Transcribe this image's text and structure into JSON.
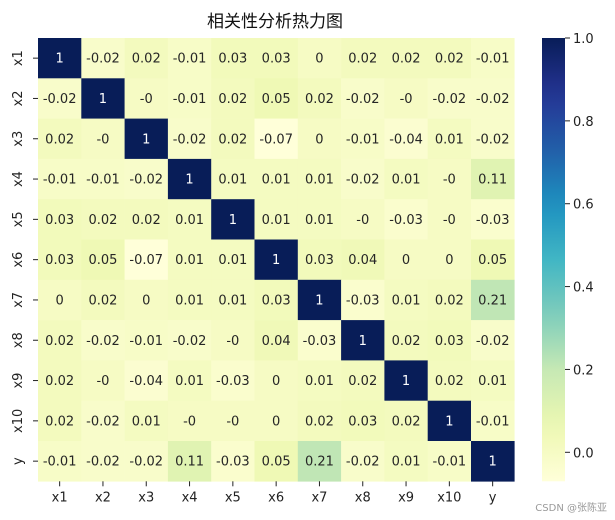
{
  "chart_data": {
    "type": "heatmap",
    "title": "相关性分析热力图",
    "x_labels": [
      "x1",
      "x2",
      "x3",
      "x4",
      "x5",
      "x6",
      "x7",
      "x8",
      "x9",
      "x10",
      "y"
    ],
    "y_labels": [
      "x1",
      "x2",
      "x3",
      "x4",
      "x5",
      "x6",
      "x7",
      "x8",
      "x9",
      "x10",
      "y"
    ],
    "matrix": [
      [
        1,
        -0.02,
        0.02,
        -0.01,
        0.03,
        0.03,
        0,
        0.02,
        0.02,
        0.02,
        -0.01
      ],
      [
        -0.02,
        1,
        0,
        -0.01,
        0.02,
        0.05,
        0.02,
        -0.02,
        0,
        -0.02,
        -0.02
      ],
      [
        0.02,
        0,
        1,
        -0.02,
        0.02,
        -0.07,
        0,
        -0.01,
        -0.04,
        0.01,
        -0.02
      ],
      [
        -0.01,
        -0.01,
        -0.02,
        1,
        0.01,
        0.01,
        0.01,
        -0.02,
        0.01,
        0,
        0.11
      ],
      [
        0.03,
        0.02,
        0.02,
        0.01,
        1,
        0.01,
        0.01,
        0,
        -0.03,
        0,
        -0.03
      ],
      [
        0.03,
        0.05,
        -0.07,
        0.01,
        0.01,
        1,
        0.03,
        0.04,
        0,
        0,
        0.05
      ],
      [
        0,
        0.02,
        0,
        0.01,
        0.01,
        0.03,
        1,
        -0.03,
        0.01,
        0.02,
        0.21
      ],
      [
        0.02,
        -0.02,
        -0.01,
        -0.02,
        0,
        0.04,
        -0.03,
        1,
        0.02,
        0.03,
        -0.02
      ],
      [
        0.02,
        0,
        -0.04,
        0.01,
        -0.03,
        0,
        0.01,
        0.02,
        1,
        0.02,
        0.01
      ],
      [
        0.02,
        -0.02,
        0.01,
        0,
        0,
        0,
        0.02,
        0.03,
        0.02,
        1,
        -0.01
      ],
      [
        -0.01,
        -0.02,
        -0.02,
        0.11,
        -0.03,
        0.05,
        0.21,
        -0.02,
        0.01,
        -0.01,
        1
      ]
    ],
    "colorbar": {
      "colormap": "YlGnBu",
      "range": [
        -0.07,
        1.0
      ],
      "ticks": [
        "0.0",
        "0.2",
        "0.4",
        "0.6",
        "0.8",
        "1.0"
      ],
      "tick_values": [
        0.0,
        0.2,
        0.4,
        0.6,
        0.8,
        1.0
      ]
    }
  },
  "watermark": "CSDN @张陈亚"
}
